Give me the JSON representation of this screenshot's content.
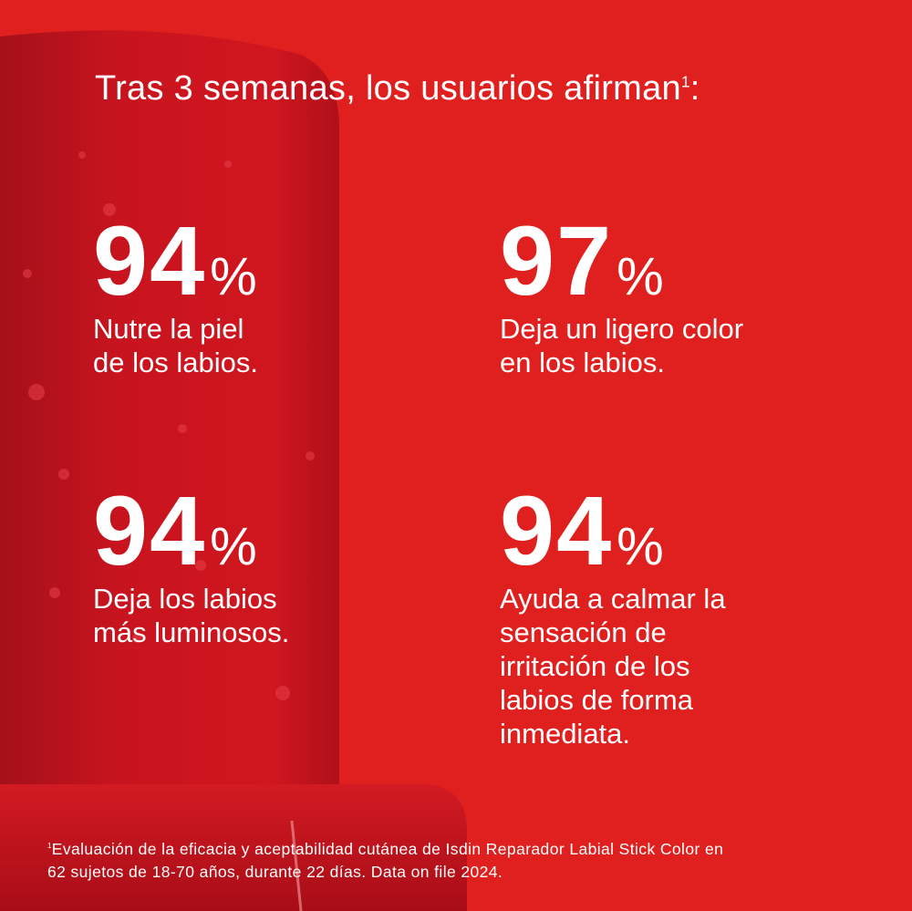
{
  "title": {
    "text": "Tras 3 semanas, los usuarios afirman",
    "superscript": "1"
  },
  "stats": [
    {
      "value": "94",
      "unit": "%",
      "lines": [
        "Nutre la piel",
        "de los labios."
      ]
    },
    {
      "value": "97",
      "unit": "%",
      "lines": [
        "Deja un ligero color",
        "en los labios."
      ]
    },
    {
      "value": "94",
      "unit": "%",
      "lines": [
        "Deja los labios",
        "más luminosos."
      ]
    },
    {
      "value": "94",
      "unit": "%",
      "lines": [
        "Ayuda a calmar la",
        "sensación de",
        "irritación de los",
        "labios de forma",
        "inmediata."
      ]
    }
  ],
  "footnote": {
    "superscript": "1",
    "lines": [
      "Evaluación de la eficacia y aceptabilidad cutánea de Isdin Reparador Labial Stick Color en",
      "62 sujetos de 18-70 años, durante 22 días. Data on file 2024."
    ]
  }
}
